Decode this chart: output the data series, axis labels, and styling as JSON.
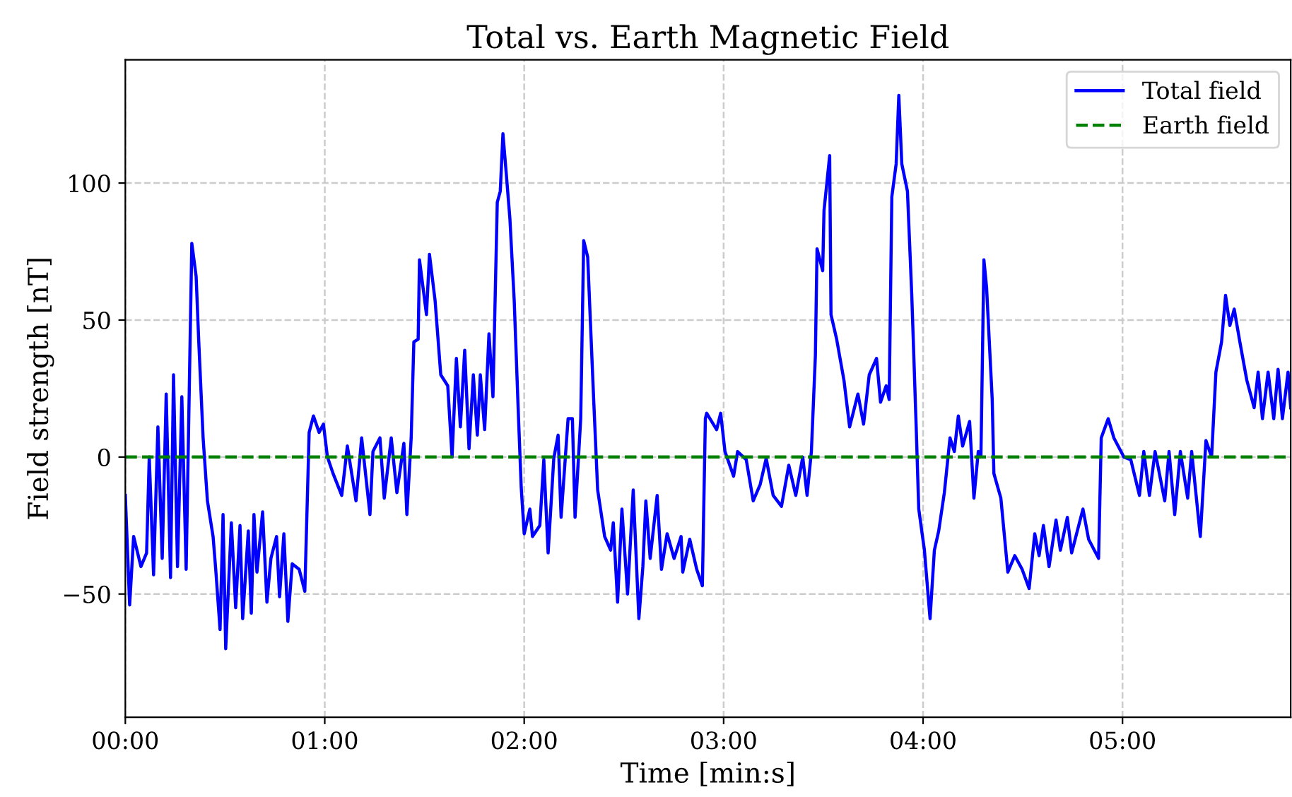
{
  "chart_data": {
    "type": "line",
    "title": "Total vs. Earth Magnetic Field",
    "xlabel": "Time [min:s]",
    "ylabel": "Field strength [nT]",
    "xlim": [
      0,
      350.6
    ],
    "ylim": [
      -95,
      145
    ],
    "xticks": [
      {
        "value": 0,
        "label": "00:00"
      },
      {
        "value": 60,
        "label": "01:00"
      },
      {
        "value": 120,
        "label": "02:00"
      },
      {
        "value": 180,
        "label": "03:00"
      },
      {
        "value": 240,
        "label": "04:00"
      },
      {
        "value": 300,
        "label": "05:00"
      }
    ],
    "yticks": [
      {
        "value": -50,
        "label": "−50"
      },
      0,
      50,
      100
    ],
    "grid": true,
    "legend": "top right",
    "series": [
      {
        "name": "Total field",
        "color": "#0000ff",
        "line_style": "solid",
        "x": [
          0,
          1.3,
          2.5,
          4.7,
          6.4,
          7.2,
          8.5,
          9.8,
          11.1,
          12.3,
          13.6,
          14.5,
          15.7,
          17.0,
          18.3,
          20.0,
          21.3,
          22.1,
          23.4,
          24.7,
          26.4,
          27.2,
          28.5,
          29.4,
          30.2,
          31.9,
          33.2,
          34.5,
          35.3,
          37.0,
          37.9,
          38.7,
          39.6,
          41.3,
          42.6,
          43.8,
          45.5,
          46.4,
          47.7,
          48.9,
          50.2,
          52.3,
          54.0,
          55.3,
          56.6,
          58.3,
          59.6,
          60.8,
          62.5,
          65.1,
          66.8,
          69.4,
          71.1,
          73.6,
          74.5,
          76.6,
          77.9,
          80.0,
          81.7,
          83.8,
          84.7,
          86.0,
          86.8,
          88.1,
          88.5,
          90.6,
          91.5,
          93.2,
          94.9,
          97.0,
          98.3,
          99.6,
          100.8,
          102.1,
          103.4,
          104.7,
          105.9,
          106.8,
          108.1,
          109.4,
          110.6,
          111.9,
          112.8,
          113.6,
          114.5,
          115.7,
          117.0,
          118.3,
          119.1,
          120.0,
          121.7,
          122.5,
          124.7,
          125.9,
          127.2,
          128.9,
          130.2,
          131.1,
          133.2,
          134.5,
          135.3,
          137.0,
          137.9,
          139.1,
          140.9,
          142.1,
          144.2,
          146.0,
          146.8,
          148.1,
          149.4,
          151.1,
          152.8,
          154.5,
          155.7,
          156.6,
          157.9,
          160.0,
          161.3,
          163.0,
          165.1,
          167.2,
          167.7,
          169.8,
          171.9,
          173.6,
          174.5,
          174.9,
          177.9,
          179.1,
          180.4,
          183.0,
          184.2,
          186.8,
          188.9,
          191.0,
          192.8,
          194.9,
          197.4,
          199.6,
          201.7,
          203.8,
          205.1,
          206.4,
          207.6,
          208.1,
          209.8,
          210.2,
          211.9,
          212.3,
          214.0,
          216.2,
          217.9,
          220.4,
          222.1,
          223.8,
          226.0,
          227.2,
          228.9,
          229.8,
          230.6,
          231.9,
          232.7,
          233.6,
          235.3,
          236.6,
          237.9,
          238.7,
          240.4,
          242.1,
          243.4,
          244.7,
          246.4,
          248.1,
          249.4,
          250.6,
          251.9,
          254.0,
          255.3,
          256.6,
          257.4,
          258.3,
          259.1,
          260.8,
          261.3,
          263.4,
          265.5,
          267.6,
          269.8,
          271.9,
          273.6,
          274.9,
          276.2,
          277.9,
          280.0,
          281.3,
          283.4,
          284.7,
          288.1,
          289.8,
          292.8,
          293.6,
          295.7,
          297.4,
          300.4,
          302.5,
          305.1,
          306.4,
          308.1,
          309.8,
          312.7,
          314.0,
          315.7,
          317.4,
          319.6,
          320.8,
          323.4,
          325.1,
          326.8,
          328.1,
          329.8,
          331.0,
          332.3,
          333.6,
          335.3,
          337.4,
          339.6,
          340.8,
          342.1,
          343.8,
          345.5,
          346.8,
          348.1,
          349.8,
          350.6
        ],
        "values": [
          -14,
          -54,
          -29,
          -40,
          -35,
          0,
          -43,
          11,
          -37,
          23,
          -44,
          30,
          -40,
          22,
          -41,
          78,
          66,
          42,
          7,
          -16,
          -29,
          -41,
          -63,
          -21,
          -70,
          -24,
          -55,
          -25,
          -59,
          -27,
          -57,
          -21,
          -42,
          -20,
          -53,
          -37,
          -29,
          -51,
          -28,
          -60,
          -39,
          -41,
          -49,
          9,
          15,
          9,
          12,
          0,
          -6,
          -14,
          4,
          -16,
          7,
          -21,
          2,
          7,
          -15,
          7,
          -13,
          5,
          -21,
          7,
          42,
          43,
          72,
          52,
          74,
          57,
          30,
          26,
          0,
          36,
          11,
          39,
          3,
          30,
          8,
          30,
          10,
          45,
          22,
          93,
          97,
          118,
          105,
          87,
          57,
          14,
          -11,
          -28,
          -19,
          -29,
          -25,
          -1,
          -35,
          -0.5,
          8,
          -22,
          14,
          14,
          -22,
          14,
          79,
          73,
          21,
          -12,
          -29,
          -34,
          -24,
          -53,
          -19,
          -50,
          -12,
          -59,
          -40,
          -16,
          -37,
          -14,
          -41,
          -28,
          -37,
          -29,
          -42,
          -30,
          -41,
          -47,
          14,
          16,
          10,
          16,
          2,
          -7,
          2,
          -1,
          -16,
          -10,
          -0.5,
          -14,
          -18,
          -3,
          -14,
          0,
          -14,
          2,
          37,
          76,
          68,
          90,
          110,
          52,
          43,
          28,
          11,
          23,
          12,
          30,
          36,
          20,
          26,
          21,
          95,
          107,
          132,
          107,
          97,
          59,
          12,
          -19,
          -34,
          -59,
          -34,
          -27,
          -13,
          7,
          2,
          15,
          4,
          13,
          -15,
          2,
          0,
          72,
          62,
          21,
          -6,
          -15,
          -42,
          -36,
          -41,
          -48,
          -28,
          -36,
          -25,
          -40,
          -23,
          -34,
          -22,
          -35,
          -19,
          -30,
          -37,
          7,
          14,
          7,
          0,
          -1,
          -14,
          2,
          -14,
          2,
          -16,
          2,
          -21,
          2,
          -15,
          2,
          -29,
          6,
          0,
          31,
          42,
          59,
          48,
          54,
          42,
          28,
          18,
          31,
          14,
          31,
          14,
          32,
          14,
          31,
          18
        ]
      },
      {
        "name": "Earth field",
        "color": "#008000",
        "line_style": "dashed",
        "x": [
          0,
          350.6
        ],
        "values": [
          0,
          0
        ]
      }
    ]
  }
}
